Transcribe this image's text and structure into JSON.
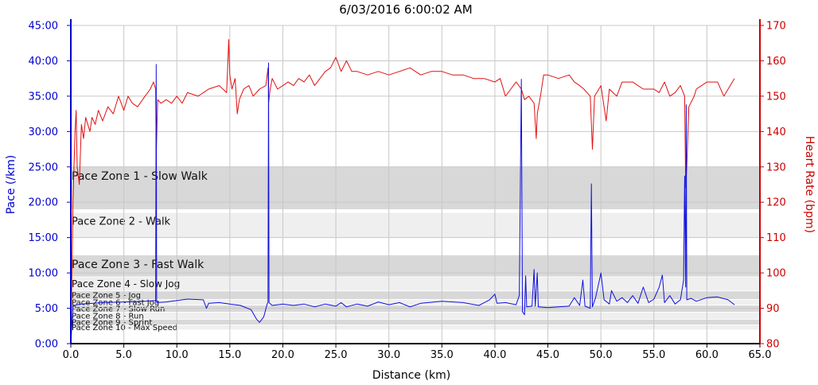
{
  "chart_data": {
    "type": "line",
    "title": "6/03/2016 6:00:02 AM",
    "xlabel": "Distance (km)",
    "ylabel_left": "Pace (/km)",
    "ylabel_right": "Heart Rate (bpm)",
    "xlim": [
      0,
      65
    ],
    "x_ticks": [
      "0.0",
      "5.0",
      "10.0",
      "15.0",
      "20.0",
      "25.0",
      "30.0",
      "35.0",
      "40.0",
      "45.0",
      "50.0",
      "55.0",
      "60.0",
      "65.0"
    ],
    "ylim_left": [
      0,
      45
    ],
    "y_ticks_left": [
      "0:00",
      "5:00",
      "10:00",
      "15:00",
      "20:00",
      "25:00",
      "30:00",
      "35:00",
      "40:00",
      "45:00"
    ],
    "ylim_right": [
      80,
      170
    ],
    "y_ticks_right": [
      "80",
      "90",
      "100",
      "110",
      "120",
      "130",
      "140",
      "150",
      "160",
      "170"
    ],
    "colors": {
      "pace": "#1010e0",
      "heart_rate": "#e01010",
      "left_axis": "#0000cc",
      "right_axis": "#cc0000"
    },
    "zones": [
      {
        "label": "Pace Zone 1 - Slow Walk",
        "from": 19,
        "to": 25,
        "fill": "#d8d8d8",
        "size": 14
      },
      {
        "label": "Pace Zone 2 - Walk",
        "from": 15,
        "to": 18.5,
        "fill": "#efefef",
        "size": 13
      },
      {
        "label": "Pace Zone 3 - Fast Walk",
        "from": 9.5,
        "to": 12.5,
        "fill": "#d8d8d8",
        "size": 14
      },
      {
        "label": "Pace Zone 4 - Slow Jog",
        "from": 7.5,
        "to": 9.4,
        "fill": "#efefef",
        "size": 12
      },
      {
        "label": "Pace Zone 5 - Jog",
        "from": 6.3,
        "to": 7.4,
        "fill": "#d8d8d8",
        "size": 10
      },
      {
        "label": "Pace Zone 6 - Fast Jog",
        "from": 5.5,
        "to": 6.2,
        "fill": "#efefef",
        "size": 10
      },
      {
        "label": "Pace Zone 7 - Slow Run",
        "from": 4.5,
        "to": 5.4,
        "fill": "#d8d8d8",
        "size": 10
      },
      {
        "label": "Pace Zone 8 - Run",
        "from": 3.5,
        "to": 4.4,
        "fill": "#efefef",
        "size": 10
      },
      {
        "label": "Pace Zone 9 - Sprint",
        "from": 2.7,
        "to": 3.4,
        "fill": "#d8d8d8",
        "size": 10
      },
      {
        "label": "Pace Zone 10 - Max Speed",
        "from": 2.0,
        "to": 2.6,
        "fill": "#efefef",
        "size": 10
      }
    ],
    "series": [
      {
        "name": "Pace",
        "axis": "left",
        "points": [
          [
            0,
            0
          ],
          [
            0.2,
            5.4
          ],
          [
            1,
            5.6
          ],
          [
            3,
            5.8
          ],
          [
            5,
            5.9
          ],
          [
            7,
            6.0
          ],
          [
            8,
            6.1
          ],
          [
            8.05,
            39.5
          ],
          [
            8.1,
            5.8
          ],
          [
            9,
            5.9
          ],
          [
            11,
            6.3
          ],
          [
            12.5,
            6.2
          ],
          [
            12.8,
            5.0
          ],
          [
            13,
            5.7
          ],
          [
            14,
            5.8
          ],
          [
            15,
            5.6
          ],
          [
            16,
            5.4
          ],
          [
            17,
            4.8
          ],
          [
            17.5,
            3.5
          ],
          [
            17.8,
            3.0
          ],
          [
            18.2,
            3.8
          ],
          [
            18.5,
            5.5
          ],
          [
            18.6,
            5.9
          ],
          [
            18.65,
            39.7
          ],
          [
            18.7,
            5.8
          ],
          [
            19,
            5.4
          ],
          [
            20,
            5.6
          ],
          [
            21,
            5.4
          ],
          [
            22,
            5.6
          ],
          [
            23,
            5.2
          ],
          [
            24,
            5.6
          ],
          [
            25,
            5.3
          ],
          [
            25.5,
            5.8
          ],
          [
            26,
            5.2
          ],
          [
            27,
            5.6
          ],
          [
            28,
            5.3
          ],
          [
            29,
            5.9
          ],
          [
            30,
            5.5
          ],
          [
            31,
            5.8
          ],
          [
            32,
            5.2
          ],
          [
            33,
            5.7
          ],
          [
            35,
            6.0
          ],
          [
            37,
            5.8
          ],
          [
            38.5,
            5.4
          ],
          [
            39.5,
            6.2
          ],
          [
            40,
            7.0
          ],
          [
            40.2,
            5.7
          ],
          [
            41,
            5.8
          ],
          [
            42,
            5.5
          ],
          [
            42.3,
            6.8
          ],
          [
            42.5,
            37.4
          ],
          [
            42.6,
            4.5
          ],
          [
            42.8,
            4.1
          ],
          [
            42.9,
            9.6
          ],
          [
            43,
            5.2
          ],
          [
            43.5,
            5.3
          ],
          [
            43.7,
            10.5
          ],
          [
            43.8,
            5.3
          ],
          [
            44,
            10.0
          ],
          [
            44.1,
            5.2
          ],
          [
            45,
            5.1
          ],
          [
            46,
            5.2
          ],
          [
            47,
            5.3
          ],
          [
            47.5,
            6.5
          ],
          [
            48,
            5.4
          ],
          [
            48.3,
            9.0
          ],
          [
            48.5,
            5.3
          ],
          [
            49,
            5.0
          ],
          [
            49.1,
            22.6
          ],
          [
            49.2,
            5.2
          ],
          [
            49.5,
            6.5
          ],
          [
            50,
            10.0
          ],
          [
            50.3,
            6.2
          ],
          [
            50.8,
            5.6
          ],
          [
            51,
            7.5
          ],
          [
            51.5,
            6.0
          ],
          [
            52,
            6.5
          ],
          [
            52.5,
            5.8
          ],
          [
            53,
            6.8
          ],
          [
            53.5,
            5.7
          ],
          [
            54,
            8.0
          ],
          [
            54.5,
            5.8
          ],
          [
            55,
            6.3
          ],
          [
            55.5,
            8.0
          ],
          [
            55.8,
            9.7
          ],
          [
            56,
            5.8
          ],
          [
            56.5,
            6.8
          ],
          [
            57,
            5.6
          ],
          [
            57.5,
            6.2
          ],
          [
            57.8,
            9.0
          ],
          [
            57.9,
            23.7
          ],
          [
            58.0,
            8.0
          ],
          [
            58.05,
            33.8
          ],
          [
            58.1,
            6.2
          ],
          [
            58.5,
            6.4
          ],
          [
            59,
            6.0
          ],
          [
            60,
            6.5
          ],
          [
            61,
            6.6
          ],
          [
            62,
            6.2
          ],
          [
            62.6,
            5.5
          ]
        ]
      },
      {
        "name": "Heart Rate",
        "axis": "right",
        "points": [
          [
            0,
            80
          ],
          [
            0.2,
            120
          ],
          [
            0.4,
            140
          ],
          [
            0.5,
            146
          ],
          [
            0.6,
            130
          ],
          [
            0.8,
            125
          ],
          [
            1,
            142
          ],
          [
            1.2,
            138
          ],
          [
            1.4,
            144
          ],
          [
            1.8,
            140
          ],
          [
            2,
            144
          ],
          [
            2.3,
            142
          ],
          [
            2.6,
            146
          ],
          [
            3,
            143
          ],
          [
            3.5,
            147
          ],
          [
            4,
            145
          ],
          [
            4.5,
            150
          ],
          [
            5,
            146
          ],
          [
            5.4,
            150
          ],
          [
            5.8,
            148
          ],
          [
            6.3,
            147
          ],
          [
            7,
            150
          ],
          [
            7.5,
            152
          ],
          [
            7.8,
            154
          ],
          [
            8,
            152
          ],
          [
            8.05,
            133
          ],
          [
            8.2,
            149
          ],
          [
            8.5,
            148
          ],
          [
            9,
            149
          ],
          [
            9.5,
            148
          ],
          [
            10,
            150
          ],
          [
            10.5,
            148
          ],
          [
            11,
            151
          ],
          [
            12,
            150
          ],
          [
            13,
            152
          ],
          [
            14,
            153
          ],
          [
            14.7,
            151
          ],
          [
            14.9,
            166
          ],
          [
            15,
            156
          ],
          [
            15.2,
            152
          ],
          [
            15.5,
            155
          ],
          [
            15.7,
            145
          ],
          [
            15.9,
            149
          ],
          [
            16.3,
            152
          ],
          [
            16.8,
            153
          ],
          [
            17.2,
            150
          ],
          [
            17.8,
            152
          ],
          [
            18.4,
            153
          ],
          [
            18.6,
            158
          ],
          [
            18.65,
            148
          ],
          [
            18.8,
            152
          ],
          [
            19,
            155
          ],
          [
            19.5,
            152
          ],
          [
            20,
            153
          ],
          [
            20.5,
            154
          ],
          [
            21,
            153
          ],
          [
            21.5,
            155
          ],
          [
            22,
            154
          ],
          [
            22.5,
            156
          ],
          [
            23,
            153
          ],
          [
            24,
            157
          ],
          [
            24.5,
            158
          ],
          [
            25,
            161
          ],
          [
            25.5,
            157
          ],
          [
            26,
            160
          ],
          [
            26.5,
            157
          ],
          [
            27,
            157
          ],
          [
            28,
            156
          ],
          [
            29,
            157
          ],
          [
            30,
            156
          ],
          [
            31,
            157
          ],
          [
            32,
            158
          ],
          [
            33,
            156
          ],
          [
            34,
            157
          ],
          [
            35,
            157
          ],
          [
            36,
            156
          ],
          [
            37,
            156
          ],
          [
            38,
            155
          ],
          [
            39,
            155
          ],
          [
            40,
            154
          ],
          [
            40.5,
            155
          ],
          [
            41,
            150
          ],
          [
            41.5,
            152
          ],
          [
            42,
            154
          ],
          [
            42.5,
            152
          ],
          [
            42.8,
            149
          ],
          [
            43.2,
            150
          ],
          [
            43.7,
            148
          ],
          [
            43.9,
            138
          ],
          [
            44,
            145
          ],
          [
            44.3,
            150
          ],
          [
            44.6,
            156
          ],
          [
            45,
            156
          ],
          [
            46,
            155
          ],
          [
            47,
            156
          ],
          [
            47.5,
            154
          ],
          [
            48,
            153
          ],
          [
            48.4,
            152
          ],
          [
            49,
            150
          ],
          [
            49.2,
            135
          ],
          [
            49.4,
            150
          ],
          [
            50,
            153
          ],
          [
            50.5,
            143
          ],
          [
            50.8,
            152
          ],
          [
            51.5,
            150
          ],
          [
            52,
            154
          ],
          [
            53,
            154
          ],
          [
            54,
            152
          ],
          [
            55,
            152
          ],
          [
            55.5,
            151
          ],
          [
            56,
            154
          ],
          [
            56.5,
            150
          ],
          [
            57,
            151
          ],
          [
            57.5,
            153
          ],
          [
            57.9,
            150
          ],
          [
            58,
            124
          ],
          [
            58.1,
            130
          ],
          [
            58.3,
            147
          ],
          [
            58.8,
            150
          ],
          [
            59,
            152
          ],
          [
            60,
            154
          ],
          [
            61,
            154
          ],
          [
            61.6,
            150
          ],
          [
            62.6,
            155
          ]
        ]
      }
    ]
  }
}
